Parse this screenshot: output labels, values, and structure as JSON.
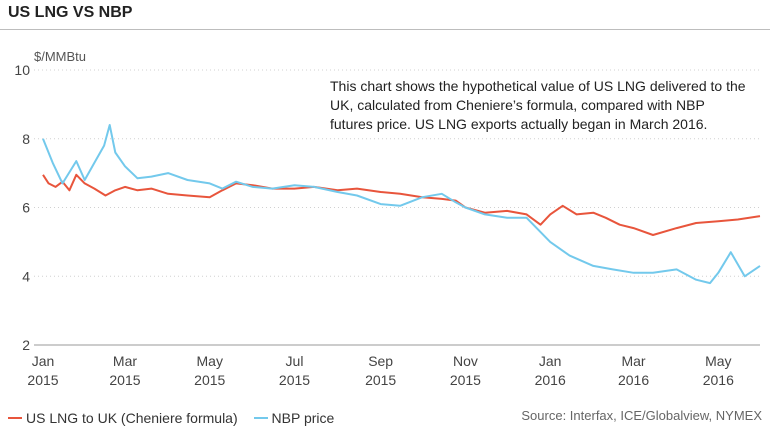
{
  "header": {
    "title": "US LNG VS NBP"
  },
  "note": "This chart shows the hypothetical value of US LNG delivered to the UK, calculated from Cheniere’s formula, compared with NBP futures price. US LNG exports actually began in March 2016.",
  "source": "Source: Interfax, ICE/Globalview, NYMEX",
  "colors": {
    "us_lng": "#e8553c",
    "nbp": "#73c9ec",
    "grid": "#d0d0d0",
    "axis": "#666666"
  },
  "chart_data": {
    "type": "line",
    "title": "US LNG VS NBP",
    "ylabel": "$/MMBtu",
    "xlabel": "",
    "ylim": [
      2,
      10
    ],
    "yticks": [
      2,
      4,
      6,
      8,
      10
    ],
    "xlim": [
      "2015-01-01",
      "2016-05-31"
    ],
    "xticks": [
      {
        "date": "2015-01-01",
        "month": "Jan",
        "year": "2015"
      },
      {
        "date": "2015-03-01",
        "month": "Mar",
        "year": "2015"
      },
      {
        "date": "2015-05-01",
        "month": "May",
        "year": "2015"
      },
      {
        "date": "2015-07-01",
        "month": "Jul",
        "year": "2015"
      },
      {
        "date": "2015-09-01",
        "month": "Sep",
        "year": "2015"
      },
      {
        "date": "2015-11-01",
        "month": "Nov",
        "year": "2015"
      },
      {
        "date": "2016-01-01",
        "month": "Jan",
        "year": "2016"
      },
      {
        "date": "2016-03-01",
        "month": "Mar",
        "year": "2016"
      },
      {
        "date": "2016-05-01",
        "month": "May",
        "year": "2016"
      }
    ],
    "grid": "horizontal-dotted",
    "legend_position": "bottom-left",
    "series": [
      {
        "name": "US LNG to UK (Cheniere formula)",
        "x": [
          "2015-01-01",
          "2015-01-05",
          "2015-01-10",
          "2015-01-15",
          "2015-01-20",
          "2015-01-25",
          "2015-01-31",
          "2015-02-07",
          "2015-02-15",
          "2015-02-22",
          "2015-03-01",
          "2015-03-10",
          "2015-03-20",
          "2015-04-01",
          "2015-04-15",
          "2015-05-01",
          "2015-05-10",
          "2015-05-20",
          "2015-06-01",
          "2015-06-15",
          "2015-07-01",
          "2015-07-15",
          "2015-08-01",
          "2015-08-15",
          "2015-09-01",
          "2015-09-15",
          "2015-10-01",
          "2015-10-15",
          "2015-10-25",
          "2015-11-01",
          "2015-11-15",
          "2015-12-01",
          "2015-12-15",
          "2015-12-25",
          "2016-01-01",
          "2016-01-10",
          "2016-01-20",
          "2016-02-01",
          "2016-02-10",
          "2016-02-20",
          "2016-03-01",
          "2016-03-15",
          "2016-04-01",
          "2016-04-15",
          "2016-05-01",
          "2016-05-15",
          "2016-05-31"
        ],
        "values": [
          6.95,
          6.7,
          6.6,
          6.75,
          6.5,
          6.95,
          6.7,
          6.55,
          6.35,
          6.5,
          6.6,
          6.5,
          6.55,
          6.4,
          6.35,
          6.3,
          6.5,
          6.7,
          6.65,
          6.55,
          6.55,
          6.6,
          6.5,
          6.55,
          6.45,
          6.4,
          6.3,
          6.25,
          6.2,
          6.0,
          5.85,
          5.9,
          5.8,
          5.5,
          5.8,
          6.05,
          5.8,
          5.85,
          5.7,
          5.5,
          5.4,
          5.2,
          5.4,
          5.55,
          5.6,
          5.65,
          5.75
        ]
      },
      {
        "name": "NBP price",
        "x": [
          "2015-01-01",
          "2015-01-08",
          "2015-01-15",
          "2015-01-25",
          "2015-01-31",
          "2015-02-07",
          "2015-02-14",
          "2015-02-18",
          "2015-02-22",
          "2015-03-01",
          "2015-03-10",
          "2015-03-20",
          "2015-04-01",
          "2015-04-15",
          "2015-05-01",
          "2015-05-10",
          "2015-05-20",
          "2015-06-01",
          "2015-06-15",
          "2015-07-01",
          "2015-07-15",
          "2015-08-01",
          "2015-08-15",
          "2015-09-01",
          "2015-09-15",
          "2015-10-01",
          "2015-10-15",
          "2015-10-25",
          "2015-11-01",
          "2015-11-15",
          "2015-12-01",
          "2015-12-15",
          "2016-01-01",
          "2016-01-15",
          "2016-02-01",
          "2016-02-15",
          "2016-03-01",
          "2016-03-15",
          "2016-04-01",
          "2016-04-15",
          "2016-04-25",
          "2016-05-01",
          "2016-05-10",
          "2016-05-20",
          "2016-05-31"
        ],
        "values": [
          8.0,
          7.3,
          6.7,
          7.35,
          6.8,
          7.3,
          7.8,
          8.4,
          7.6,
          7.2,
          6.85,
          6.9,
          7.0,
          6.8,
          6.7,
          6.55,
          6.75,
          6.6,
          6.55,
          6.65,
          6.6,
          6.45,
          6.35,
          6.1,
          6.05,
          6.3,
          6.4,
          6.15,
          6.0,
          5.8,
          5.7,
          5.7,
          5.0,
          4.6,
          4.3,
          4.2,
          4.1,
          4.1,
          4.2,
          3.9,
          3.8,
          4.1,
          4.7,
          4.0,
          4.3
        ]
      }
    ]
  }
}
